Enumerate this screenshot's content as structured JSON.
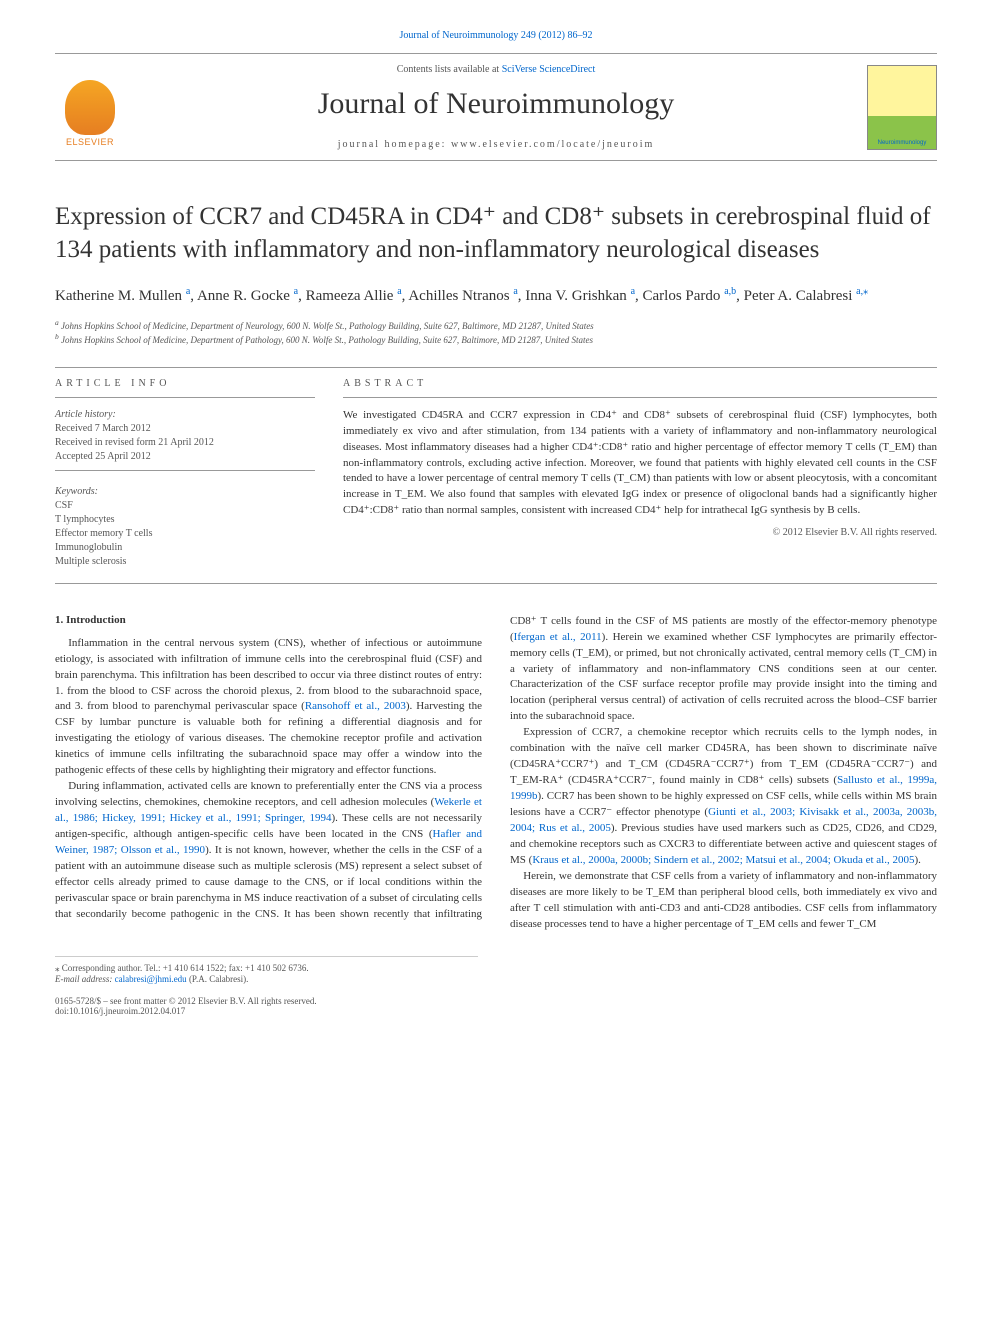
{
  "top_link": "Journal of Neuroimmunology 249 (2012) 86–92",
  "header": {
    "logo_left_text": "ELSEVIER",
    "contents_prefix": "Contents lists available at ",
    "contents_link": "SciVerse ScienceDirect",
    "journal_name": "Journal of Neuroimmunology",
    "homepage_prefix": "journal homepage: ",
    "homepage_url": "www.elsevier.com/locate/jneuroim",
    "logo_right_text": "Neuroimmunology"
  },
  "title": "Expression of CCR7 and CD45RA in CD4⁺ and CD8⁺ subsets in cerebrospinal fluid of 134 patients with inflammatory and non-inflammatory neurological diseases",
  "authors": {
    "list": [
      {
        "name": "Katherine M. Mullen",
        "aff": "a"
      },
      {
        "name": "Anne R. Gocke",
        "aff": "a"
      },
      {
        "name": "Rameeza Allie",
        "aff": "a"
      },
      {
        "name": "Achilles Ntranos",
        "aff": "a"
      },
      {
        "name": "Inna V. Grishkan",
        "aff": "a"
      },
      {
        "name": "Carlos Pardo",
        "aff": "a,b"
      },
      {
        "name": "Peter A. Calabresi",
        "aff": "a,",
        "corr": true
      }
    ]
  },
  "affiliations": {
    "a": "Johns Hopkins School of Medicine, Department of Neurology, 600 N. Wolfe St., Pathology Building, Suite 627, Baltimore, MD 21287, United States",
    "b": "Johns Hopkins School of Medicine, Department of Pathology, 600 N. Wolfe St., Pathology Building, Suite 627, Baltimore, MD 21287, United States"
  },
  "article_info": {
    "heading": "ARTICLE INFO",
    "history_label": "Article history:",
    "received": "Received 7 March 2012",
    "revised": "Received in revised form 21 April 2012",
    "accepted": "Accepted 25 April 2012",
    "keywords_label": "Keywords:",
    "keywords": [
      "CSF",
      "T lymphocytes",
      "Effector memory T cells",
      "Immunoglobulin",
      "Multiple sclerosis"
    ]
  },
  "abstract": {
    "heading": "ABSTRACT",
    "text": "We investigated CD45RA and CCR7 expression in CD4⁺ and CD8⁺ subsets of cerebrospinal fluid (CSF) lymphocytes, both immediately ex vivo and after stimulation, from 134 patients with a variety of inflammatory and non-inflammatory neurological diseases. Most inflammatory diseases had a higher CD4⁺:CD8⁺ ratio and higher percentage of effector memory T cells (T_EM) than non-inflammatory controls, excluding active infection. Moreover, we found that patients with highly elevated cell counts in the CSF tended to have a lower percentage of central memory T cells (T_CM) than patients with low or absent pleocytosis, with a concomitant increase in T_EM. We also found that samples with elevated IgG index or presence of oligoclonal bands had a significantly higher CD4⁺:CD8⁺ ratio than normal samples, consistent with increased CD4⁺ help for intrathecal IgG synthesis by B cells.",
    "copyright": "© 2012 Elsevier B.V. All rights reserved."
  },
  "introduction": {
    "heading": "1. Introduction",
    "p1": "Inflammation in the central nervous system (CNS), whether of infectious or autoimmune etiology, is associated with infiltration of immune cells into the cerebrospinal fluid (CSF) and brain parenchyma. This infiltration has been described to occur via three distinct routes of entry: 1. from the blood to CSF across the choroid plexus, 2. from blood to the subarachnoid space, and 3. from blood to parenchymal perivascular space (",
    "p1_ref": "Ransohoff et al., 2003",
    "p1_cont": "). Harvesting the CSF by lumbar puncture is valuable both for refining a differential diagnosis and for investigating the etiology of various diseases. The chemokine receptor profile and activation kinetics of immune cells infiltrating the subarachnoid space may offer a window into the pathogenic effects of these cells by highlighting their migratory and effector functions.",
    "p2": "During inflammation, activated cells are known to preferentially enter the CNS via a process involving selectins, chemokines, chemokine receptors, and cell adhesion molecules (",
    "p2_ref": "Wekerle et al., 1986; Hickey, 1991; Hickey et al., 1991; Springer, 1994",
    "p2_cont": "). These cells are not necessarily antigen-specific, although antigen-specific cells have been located in the CNS (",
    "p2_ref2": "Hafler and Weiner, 1987; Olsson et al., 1990",
    "p2_cont2": "). It is not known, however, whether the cells in the CSF of a patient with an autoimmune disease such as multiple sclerosis (MS) represent a select subset of effector cells already primed to cause damage to the CNS, or if local conditions within the perivascular space or brain parenchyma in MS induce reactivation of a subset of circulating cells that secondarily become pathogenic in the CNS. It has been shown recently that infiltrating CD8⁺ T cells found in the CSF of MS patients are mostly of the effector-memory phenotype (",
    "p2_ref3": "Ifergan et al., 2011",
    "p2_cont3": "). Herein we examined whether CSF lymphocytes are primarily effector-memory cells (T_EM), or primed, but not chronically activated, central memory cells (T_CM) in a variety of inflammatory and non-inflammatory CNS conditions seen at our center. Characterization of the CSF surface receptor profile may provide insight into the timing and location (peripheral versus central) of activation of cells recruited across the blood–CSF barrier into the subarachnoid space.",
    "p3": "Expression of CCR7, a chemokine receptor which recruits cells to the lymph nodes, in combination with the naïve cell marker CD45RA, has been shown to discriminate naïve (CD45RA⁺CCR7⁺) and T_CM (CD45RA⁻CCR7⁺) from T_EM (CD45RA⁻CCR7⁻) and T_EM-RA⁺ (CD45RA⁺CCR7⁻, found mainly in CD8⁺ cells) subsets (",
    "p3_ref": "Sallusto et al., 1999a, 1999b",
    "p3_cont": "). CCR7 has been shown to be highly expressed on CSF cells, while cells within MS brain lesions have a CCR7⁻ effector phenotype (",
    "p3_ref2": "Giunti et al., 2003; Kivisakk et al., 2003a, 2003b, 2004; Rus et al., 2005",
    "p3_cont2": "). Previous studies have used markers such as CD25, CD26, and CD29, and chemokine receptors such as CXCR3 to differentiate between active and quiescent stages of MS (",
    "p3_ref3": "Kraus et al., 2000a, 2000b; Sindern et al., 2002; Matsui et al., 2004; Okuda et al., 2005",
    "p3_cont3": ").",
    "p4": "Herein, we demonstrate that CSF cells from a variety of inflammatory and non-inflammatory diseases are more likely to be T_EM than peripheral blood cells, both immediately ex vivo and after T cell stimulation with anti-CD3 and anti-CD28 antibodies. CSF cells from inflammatory disease processes tend to have a higher percentage of T_EM cells and fewer T_CM"
  },
  "footer": {
    "corr_label": "⁎ Corresponding author. Tel.: +1 410 614 1522; fax: +1 410 502 6736.",
    "email_label": "E-mail address: ",
    "email": "calabresi@jhmi.edu",
    "email_name": " (P.A. Calabresi).",
    "issn": "0165-5728/$ – see front matter © 2012 Elsevier B.V. All rights reserved.",
    "doi": "doi:10.1016/j.jneuroim.2012.04.017"
  },
  "colors": {
    "link": "#0066cc",
    "text": "#333333",
    "muted": "#555555",
    "elsevier_orange": "#e67e22",
    "cover_yellow": "#fff59d",
    "cover_green": "#8bc34a"
  }
}
